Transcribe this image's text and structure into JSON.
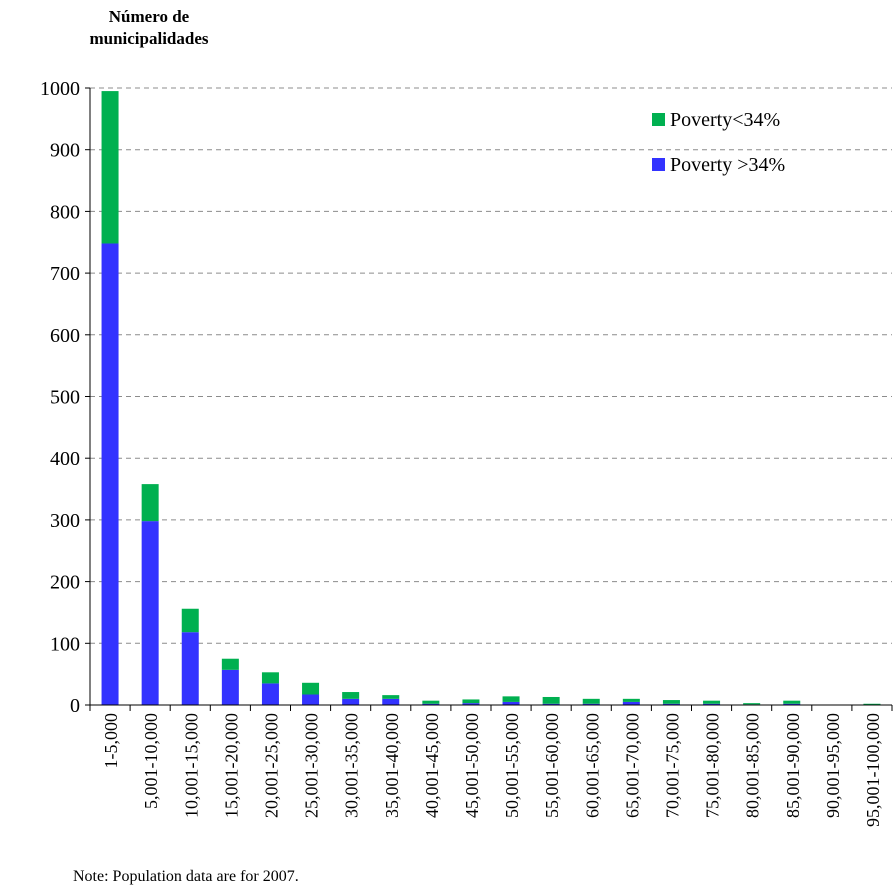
{
  "chart_data": {
    "type": "bar",
    "stacked": true,
    "title": "",
    "ylabel": "Número de municipalidades",
    "xlabel": "",
    "ylim": [
      0,
      1000
    ],
    "yticks": [
      0,
      100,
      200,
      300,
      400,
      500,
      600,
      700,
      800,
      900,
      1000
    ],
    "grid": "horizontal dashed",
    "legend_position": "top-right",
    "categories": [
      "1-5,000",
      "5,001-10,000",
      "10,001-15,000",
      "15,001-20,000",
      "20,001-25,000",
      "25,001-30,000",
      "30,001-35,000",
      "35,001-40,000",
      "40,001-45,000",
      "45,001-50,000",
      "50,001-55,000",
      "55,001-60,000",
      "60,001-65,000",
      "65,001-70,000",
      "70,001-75,000",
      "75,001-80,000",
      "80,001-85,000",
      "85,001-90,000",
      "90,001-95,000",
      "95,001-100,000"
    ],
    "series": [
      {
        "name": "Poverty >34%",
        "color": "#3333ff",
        "values": [
          748,
          298,
          118,
          57,
          35,
          17,
          10,
          10,
          2,
          3,
          5,
          2,
          2,
          5,
          2,
          2,
          1,
          2,
          0,
          1
        ]
      },
      {
        "name": "Poverty<34%",
        "color": "#00b050",
        "values": [
          247,
          60,
          38,
          18,
          18,
          19,
          11,
          6,
          5,
          6,
          9,
          11,
          8,
          5,
          6,
          5,
          2,
          5,
          0,
          1
        ]
      }
    ],
    "note": "Note: Population data are for 2007."
  }
}
